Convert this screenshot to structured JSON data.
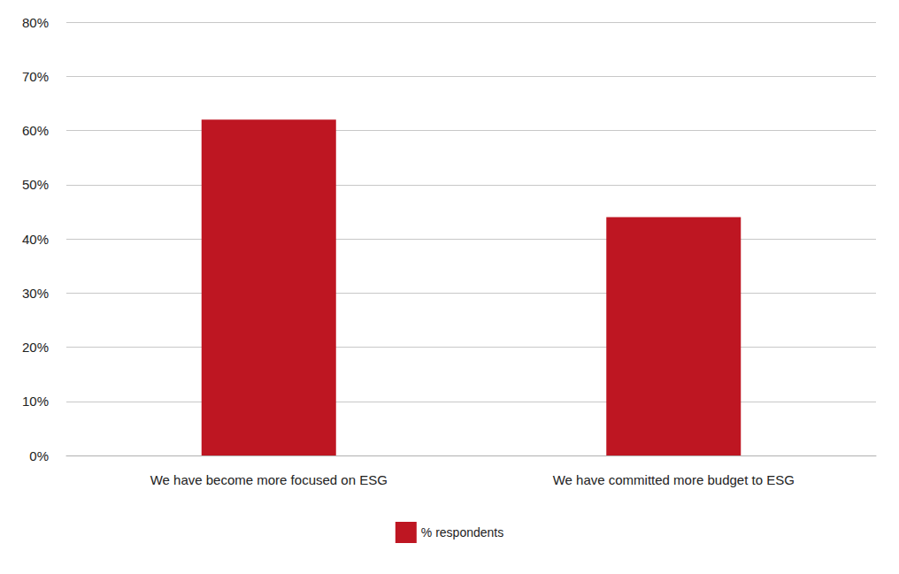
{
  "chart_data": {
    "type": "bar",
    "categories": [
      "We have become more focused on ESG",
      "We have committed more budget to ESG"
    ],
    "series": [
      {
        "name": "% respondents",
        "color": "#be1622",
        "values": [
          62,
          44
        ]
      }
    ],
    "ylim": [
      0,
      80
    ],
    "yticks": [
      {
        "value": 0,
        "label": "0%"
      },
      {
        "value": 10,
        "label": "10%"
      },
      {
        "value": 20,
        "label": "20%"
      },
      {
        "value": 30,
        "label": "30%"
      },
      {
        "value": 40,
        "label": "40%"
      },
      {
        "value": 50,
        "label": "50%"
      },
      {
        "value": 60,
        "label": "60%"
      },
      {
        "value": 70,
        "label": "70%"
      },
      {
        "value": 80,
        "label": "80%"
      }
    ],
    "grid": true,
    "legend": "bottom"
  }
}
